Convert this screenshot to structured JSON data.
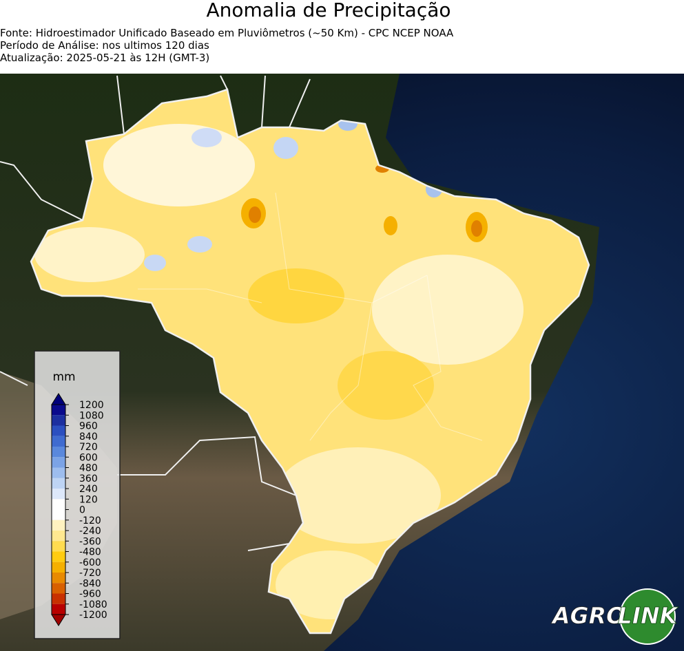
{
  "header": {
    "title": "Anomalia de Precipitação",
    "lines": [
      "Fonte: Hidroestimador Unificado Baseado em Pluviômetros (~50 Km) - CPC NCEP NOAA",
      "Período de Análise: nos ultimos 120 dias",
      "Atualização: 2025-05-21 às 12H (GMT-3)"
    ]
  },
  "colorbar": {
    "unit": "mm",
    "ticks": [
      1200,
      1080,
      960,
      840,
      720,
      600,
      480,
      360,
      240,
      120,
      0,
      -120,
      -240,
      -360,
      -480,
      -600,
      -720,
      -840,
      -960,
      -1080,
      -1200
    ],
    "colors": [
      "#0a0a8c",
      "#1c2fa0",
      "#2b4fc0",
      "#3f6bd0",
      "#5a88dc",
      "#7ba3e6",
      "#9dbdee",
      "#bed4f4",
      "#dde8fa",
      "#ffffff",
      "#ffffff",
      "#fff2c0",
      "#ffe890",
      "#ffdc50",
      "#ffcc10",
      "#f5b000",
      "#e88a00",
      "#d86000",
      "#c83000",
      "#b80000"
    ],
    "over_color": "#00007a",
    "under_color": "#a00000"
  },
  "logo": {
    "left": "AGRO",
    "right": "LINK"
  }
}
